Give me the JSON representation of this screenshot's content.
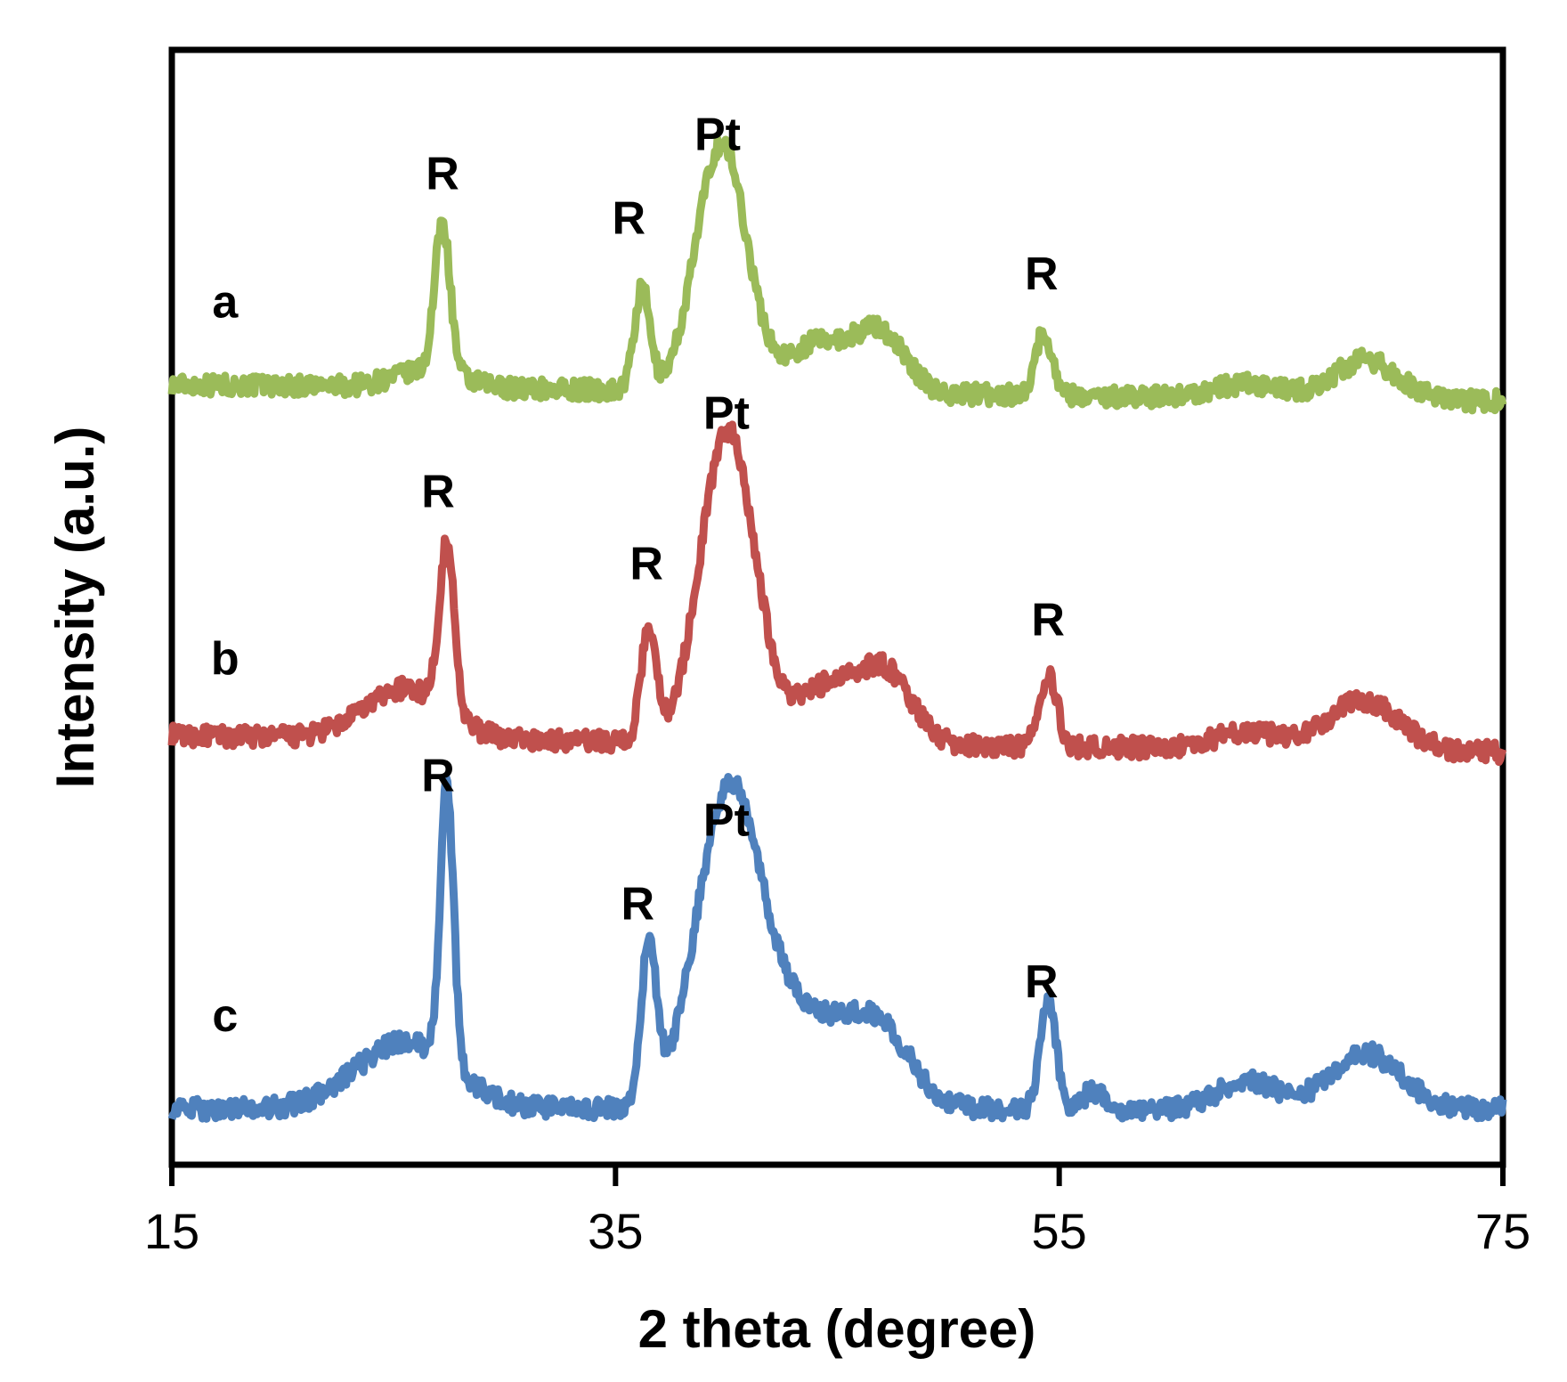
{
  "chart_data": {
    "type": "line",
    "title": "",
    "xlabel": "2 theta (degree)",
    "ylabel": "Intensity  (a.u.)",
    "xlim": [
      15,
      75
    ],
    "ylim": [
      0,
      100
    ],
    "x_ticks": [
      "15",
      "35",
      "55",
      "75"
    ],
    "y_ticks_shown": false,
    "grid": false,
    "legend": "none (series labelled inline at left)",
    "series": [
      {
        "name": "a",
        "color": "#9BBB59",
        "baseline": 70,
        "noise": 0.9,
        "peaks": [
          {
            "pos": 27.2,
            "height": 13.5,
            "width": 0.35
          },
          {
            "pos": 26.5,
            "height": 1.5,
            "width": 1.5
          },
          {
            "pos": 36.2,
            "height": 9,
            "width": 0.35
          },
          {
            "pos": 39.2,
            "height": 11,
            "width": 1.0
          },
          {
            "pos": 40.2,
            "height": 14,
            "width": 1.0
          },
          {
            "pos": 44.2,
            "height": 4.5,
            "width": 1.5
          },
          {
            "pos": 47.0,
            "height": 5,
            "width": 1.1
          },
          {
            "pos": 54.3,
            "height": 5.5,
            "width": 0.4
          },
          {
            "pos": 63.5,
            "height": 1.2,
            "width": 1.5
          },
          {
            "pos": 68.8,
            "height": 3.5,
            "width": 1.4
          }
        ],
        "tilt": -1.5
      },
      {
        "name": "b",
        "color": "#C0504D",
        "baseline": 38.5,
        "noise": 0.9,
        "peaks": [
          {
            "pos": 27.4,
            "height": 15,
            "width": 0.35
          },
          {
            "pos": 25.5,
            "height": 4.5,
            "width": 1.8
          },
          {
            "pos": 36.5,
            "height": 10,
            "width": 0.35
          },
          {
            "pos": 39.5,
            "height": 14,
            "width": 1.1
          },
          {
            "pos": 40.5,
            "height": 17,
            "width": 1.1
          },
          {
            "pos": 44.5,
            "height": 5,
            "width": 1.5
          },
          {
            "pos": 47.2,
            "height": 6,
            "width": 1.2
          },
          {
            "pos": 54.5,
            "height": 6.5,
            "width": 0.4
          },
          {
            "pos": 63.5,
            "height": 1.5,
            "width": 1.5
          },
          {
            "pos": 68.7,
            "height": 4.5,
            "width": 1.6
          }
        ],
        "tilt": -1.5
      },
      {
        "name": "c",
        "color": "#4F81BD",
        "baseline": 5,
        "noise": 0.9,
        "peaks": [
          {
            "pos": 27.4,
            "height": 25,
            "width": 0.3
          },
          {
            "pos": 25.5,
            "height": 6,
            "width": 2.2
          },
          {
            "pos": 36.5,
            "height": 14,
            "width": 0.35
          },
          {
            "pos": 39.5,
            "height": 16,
            "width": 1.3
          },
          {
            "pos": 40.8,
            "height": 17,
            "width": 1.3
          },
          {
            "pos": 43.0,
            "height": 3,
            "width": 1.0
          },
          {
            "pos": 44.5,
            "height": 6,
            "width": 1.5
          },
          {
            "pos": 47.0,
            "height": 6.5,
            "width": 1.4
          },
          {
            "pos": 54.5,
            "height": 10,
            "width": 0.35
          },
          {
            "pos": 56.5,
            "height": 1.5,
            "width": 0.5
          },
          {
            "pos": 63.5,
            "height": 2.5,
            "width": 1.3
          },
          {
            "pos": 68.8,
            "height": 5,
            "width": 1.6
          }
        ],
        "tilt": 0
      }
    ],
    "series_labels": [
      {
        "text": "a",
        "x": 17.4,
        "y": 76
      },
      {
        "text": "b",
        "x": 17.4,
        "y": 44
      },
      {
        "text": "c",
        "x": 17.4,
        "y": 12
      }
    ],
    "annotations": [
      {
        "text": "R",
        "x": 27.2,
        "y": 87.5
      },
      {
        "text": "R",
        "x": 35.6,
        "y": 83.5
      },
      {
        "text": "Pt",
        "x": 39.6,
        "y": 91
      },
      {
        "text": "R",
        "x": 54.2,
        "y": 78.5
      },
      {
        "text": "R",
        "x": 27.0,
        "y": 59
      },
      {
        "text": "R",
        "x": 36.4,
        "y": 52.5
      },
      {
        "text": "Pt",
        "x": 40.0,
        "y": 66
      },
      {
        "text": "R",
        "x": 54.5,
        "y": 47.5
      },
      {
        "text": "R",
        "x": 27.0,
        "y": 33.5
      },
      {
        "text": "R",
        "x": 36.0,
        "y": 22
      },
      {
        "text": "Pt",
        "x": 40.0,
        "y": 29.5
      },
      {
        "text": "R",
        "x": 54.2,
        "y": 15
      }
    ]
  }
}
